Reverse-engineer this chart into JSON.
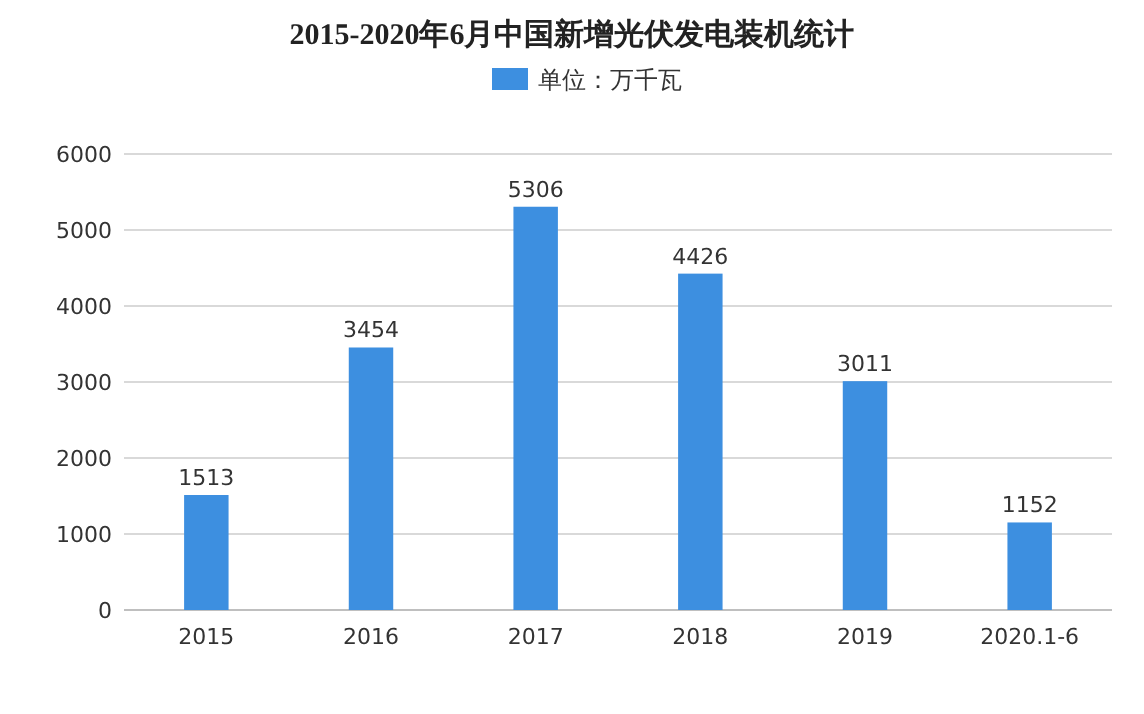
{
  "chart_data": {
    "type": "bar",
    "title": "2015-2020年6月中国新增光伏发电装机统计",
    "categories": [
      "2015",
      "2016",
      "2017",
      "2018",
      "2019",
      "2020.1-6"
    ],
    "series": [
      {
        "name": "单位：万千瓦",
        "color": "#3d8fe0",
        "values": [
          1513,
          3454,
          5306,
          4426,
          3011,
          1152
        ]
      }
    ],
    "ylim": [
      0,
      6000
    ],
    "yticks": [
      0,
      1000,
      2000,
      3000,
      4000,
      5000,
      6000
    ],
    "grid": "y",
    "legend": "top",
    "data_labels": true
  }
}
